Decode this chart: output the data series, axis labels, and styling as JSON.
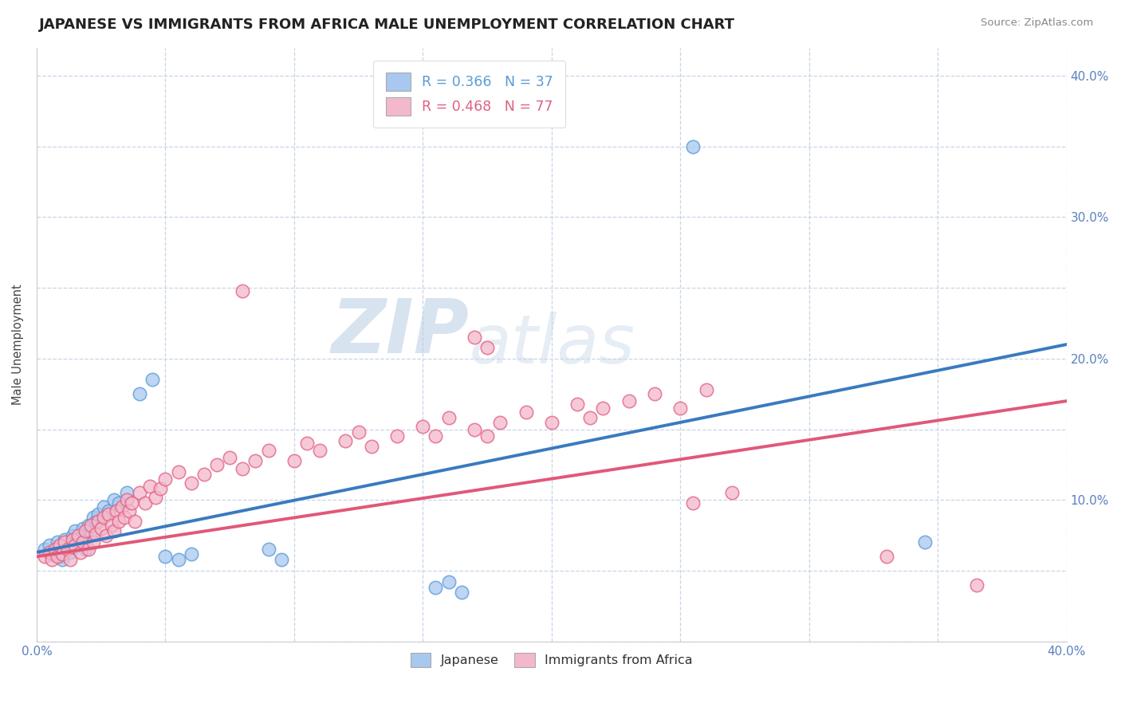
{
  "title": "JAPANESE VS IMMIGRANTS FROM AFRICA MALE UNEMPLOYMENT CORRELATION CHART",
  "source": "Source: ZipAtlas.com",
  "ylabel": "Male Unemployment",
  "watermark_zip": "ZIP",
  "watermark_atlas": "atlas",
  "xlim": [
    0.0,
    0.4
  ],
  "ylim": [
    0.0,
    0.42
  ],
  "xticks": [
    0.0,
    0.05,
    0.1,
    0.15,
    0.2,
    0.25,
    0.3,
    0.35,
    0.4
  ],
  "yticks": [
    0.0,
    0.05,
    0.1,
    0.15,
    0.2,
    0.25,
    0.3,
    0.35,
    0.4
  ],
  "legend_entries": [
    {
      "label": "R = 0.366   N = 37",
      "facecolor": "#a8c8f0",
      "textcolor": "#5a9bd5"
    },
    {
      "label": "R = 0.468   N = 77",
      "facecolor": "#f4b8cc",
      "textcolor": "#e06080"
    }
  ],
  "bottom_legend": [
    {
      "label": "Japanese",
      "facecolor": "#a8c8f0"
    },
    {
      "label": "Immigrants from Africa",
      "facecolor": "#f4b8cc"
    }
  ],
  "japanese_points": [
    [
      0.003,
      0.065
    ],
    [
      0.005,
      0.068
    ],
    [
      0.006,
      0.062
    ],
    [
      0.008,
      0.07
    ],
    [
      0.009,
      0.06
    ],
    [
      0.01,
      0.058
    ],
    [
      0.011,
      0.072
    ],
    [
      0.012,
      0.066
    ],
    [
      0.013,
      0.063
    ],
    [
      0.014,
      0.075
    ],
    [
      0.015,
      0.078
    ],
    [
      0.016,
      0.068
    ],
    [
      0.017,
      0.073
    ],
    [
      0.018,
      0.08
    ],
    [
      0.019,
      0.065
    ],
    [
      0.02,
      0.082
    ],
    [
      0.021,
      0.076
    ],
    [
      0.022,
      0.088
    ],
    [
      0.023,
      0.085
    ],
    [
      0.024,
      0.09
    ],
    [
      0.026,
      0.095
    ],
    [
      0.028,
      0.092
    ],
    [
      0.03,
      0.1
    ],
    [
      0.032,
      0.098
    ],
    [
      0.035,
      0.105
    ],
    [
      0.04,
      0.175
    ],
    [
      0.045,
      0.185
    ],
    [
      0.05,
      0.06
    ],
    [
      0.055,
      0.058
    ],
    [
      0.06,
      0.062
    ],
    [
      0.09,
      0.065
    ],
    [
      0.095,
      0.058
    ],
    [
      0.155,
      0.038
    ],
    [
      0.16,
      0.042
    ],
    [
      0.165,
      0.035
    ],
    [
      0.255,
      0.35
    ],
    [
      0.345,
      0.07
    ]
  ],
  "africa_points": [
    [
      0.003,
      0.06
    ],
    [
      0.005,
      0.063
    ],
    [
      0.006,
      0.058
    ],
    [
      0.007,
      0.065
    ],
    [
      0.008,
      0.06
    ],
    [
      0.009,
      0.068
    ],
    [
      0.01,
      0.062
    ],
    [
      0.011,
      0.07
    ],
    [
      0.012,
      0.065
    ],
    [
      0.013,
      0.058
    ],
    [
      0.014,
      0.072
    ],
    [
      0.015,
      0.068
    ],
    [
      0.016,
      0.075
    ],
    [
      0.017,
      0.063
    ],
    [
      0.018,
      0.07
    ],
    [
      0.019,
      0.078
    ],
    [
      0.02,
      0.065
    ],
    [
      0.021,
      0.082
    ],
    [
      0.022,
      0.07
    ],
    [
      0.023,
      0.076
    ],
    [
      0.024,
      0.085
    ],
    [
      0.025,
      0.08
    ],
    [
      0.026,
      0.088
    ],
    [
      0.027,
      0.075
    ],
    [
      0.028,
      0.09
    ],
    [
      0.029,
      0.082
    ],
    [
      0.03,
      0.078
    ],
    [
      0.031,
      0.092
    ],
    [
      0.032,
      0.085
    ],
    [
      0.033,
      0.095
    ],
    [
      0.034,
      0.088
    ],
    [
      0.035,
      0.1
    ],
    [
      0.036,
      0.092
    ],
    [
      0.037,
      0.098
    ],
    [
      0.038,
      0.085
    ],
    [
      0.04,
      0.105
    ],
    [
      0.042,
      0.098
    ],
    [
      0.044,
      0.11
    ],
    [
      0.046,
      0.102
    ],
    [
      0.048,
      0.108
    ],
    [
      0.05,
      0.115
    ],
    [
      0.055,
      0.12
    ],
    [
      0.06,
      0.112
    ],
    [
      0.065,
      0.118
    ],
    [
      0.07,
      0.125
    ],
    [
      0.075,
      0.13
    ],
    [
      0.08,
      0.122
    ],
    [
      0.085,
      0.128
    ],
    [
      0.09,
      0.135
    ],
    [
      0.1,
      0.128
    ],
    [
      0.105,
      0.14
    ],
    [
      0.11,
      0.135
    ],
    [
      0.12,
      0.142
    ],
    [
      0.125,
      0.148
    ],
    [
      0.13,
      0.138
    ],
    [
      0.14,
      0.145
    ],
    [
      0.15,
      0.152
    ],
    [
      0.155,
      0.145
    ],
    [
      0.16,
      0.158
    ],
    [
      0.17,
      0.15
    ],
    [
      0.175,
      0.145
    ],
    [
      0.18,
      0.155
    ],
    [
      0.19,
      0.162
    ],
    [
      0.2,
      0.155
    ],
    [
      0.21,
      0.168
    ],
    [
      0.215,
      0.158
    ],
    [
      0.22,
      0.165
    ],
    [
      0.23,
      0.17
    ],
    [
      0.24,
      0.175
    ],
    [
      0.25,
      0.165
    ],
    [
      0.26,
      0.178
    ],
    [
      0.08,
      0.248
    ],
    [
      0.17,
      0.215
    ],
    [
      0.175,
      0.208
    ],
    [
      0.255,
      0.098
    ],
    [
      0.27,
      0.105
    ],
    [
      0.33,
      0.06
    ],
    [
      0.365,
      0.04
    ]
  ],
  "japanese_trend": [
    0.0,
    0.063,
    0.4,
    0.21
  ],
  "africa_trend": [
    0.0,
    0.06,
    0.4,
    0.17
  ],
  "japanese_dot_face": "#a8c8f0",
  "japanese_dot_edge": "#5a9bd5",
  "africa_dot_face": "#f4b8cc",
  "africa_dot_edge": "#e06080",
  "trend_blue": "#3a7abf",
  "trend_pink": "#e05878",
  "background_color": "#ffffff",
  "grid_color": "#c8d4e8",
  "title_fontsize": 13,
  "axis_label_fontsize": 10.5,
  "tick_color": "#5a80c0"
}
